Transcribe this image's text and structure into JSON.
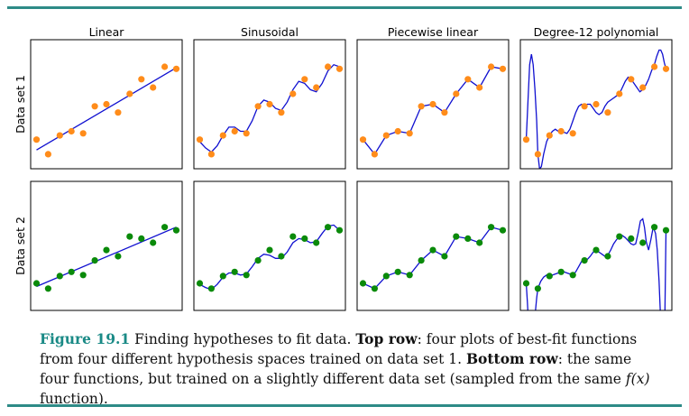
{
  "style": {
    "rule_color": "#2e8b87",
    "fit_color": "#1010d0",
    "points_row1_color": "#ff8c1a",
    "points_row2_color": "#0a8a0a",
    "caption_label_color": "#1a8a86"
  },
  "columns": [
    "Linear",
    "Sinusoidal",
    "Piecewise linear",
    "Degree-12 polynomial"
  ],
  "rows": [
    "Data set 1",
    "Data set 2"
  ],
  "chart_data": [
    {
      "type": "scatter",
      "row": "Data set 1",
      "points": {
        "x": [
          0,
          1,
          2,
          3,
          4,
          5,
          6,
          7,
          8,
          9,
          10,
          11,
          12
        ],
        "y": [
          2.0,
          1.3,
          2.2,
          2.4,
          2.3,
          3.6,
          3.7,
          3.3,
          4.2,
          4.9,
          4.5,
          5.5,
          5.4
        ]
      },
      "fits": {
        "Linear": {
          "x": [
            0,
            12
          ],
          "y": [
            1.5,
            5.45
          ]
        },
        "Sinusoidal": {
          "x": [
            0,
            0.5,
            1,
            1.5,
            2,
            2.5,
            3,
            3.5,
            4,
            4.5,
            5,
            5.5,
            6,
            6.5,
            7,
            7.5,
            8,
            8.5,
            9,
            9.5,
            10,
            10.5,
            11,
            11.5,
            12
          ],
          "y": [
            1.9,
            1.6,
            1.4,
            1.7,
            2.2,
            2.6,
            2.6,
            2.4,
            2.4,
            2.9,
            3.6,
            3.9,
            3.8,
            3.5,
            3.4,
            3.8,
            4.4,
            4.8,
            4.7,
            4.4,
            4.3,
            4.7,
            5.3,
            5.6,
            5.5
          ]
        },
        "Piecewise linear": {
          "x": [
            0,
            1,
            2,
            3,
            4,
            5,
            6,
            7,
            8,
            9,
            10,
            11,
            12
          ],
          "y": [
            2.0,
            1.3,
            2.2,
            2.4,
            2.3,
            3.6,
            3.7,
            3.3,
            4.2,
            4.9,
            4.5,
            5.5,
            5.4
          ]
        },
        "Degree-12 polynomial": {
          "x": [
            0,
            0.15,
            0.3,
            0.45,
            0.6,
            0.75,
            0.9,
            1.0,
            1.15,
            1.3,
            1.5,
            1.75,
            2.0,
            2.25,
            2.5,
            2.75,
            3.0,
            3.25,
            3.5,
            3.75,
            4.0,
            4.25,
            4.5,
            4.75,
            5.0,
            5.25,
            5.5,
            5.75,
            6.0,
            6.25,
            6.5,
            6.75,
            7.0,
            7.25,
            7.5,
            7.75,
            8.0,
            8.25,
            8.5,
            8.75,
            9.0,
            9.25,
            9.5,
            9.75,
            10.0,
            10.25,
            10.5,
            10.75,
            11.0,
            11.2,
            11.4,
            11.55,
            11.7,
            11.85,
            12.0
          ],
          "y": [
            2.0,
            3.8,
            5.6,
            6.1,
            5.6,
            4.4,
            2.9,
            1.3,
            0.6,
            0.7,
            1.3,
            1.9,
            2.2,
            2.4,
            2.5,
            2.4,
            2.4,
            2.35,
            2.3,
            2.5,
            2.9,
            3.3,
            3.6,
            3.7,
            3.6,
            3.7,
            3.7,
            3.5,
            3.3,
            3.2,
            3.3,
            3.6,
            3.8,
            3.9,
            4.0,
            4.1,
            4.2,
            4.5,
            4.8,
            5.0,
            4.9,
            4.7,
            4.5,
            4.3,
            4.4,
            4.6,
            4.9,
            5.3,
            5.6,
            6.0,
            6.3,
            6.3,
            6.1,
            5.7,
            5.4
          ]
        }
      }
    },
    {
      "type": "scatter",
      "row": "Data set 2",
      "points": {
        "x": [
          0,
          1,
          2,
          3,
          4,
          5,
          6,
          7,
          8,
          9,
          10,
          11,
          12
        ],
        "y": [
          1.9,
          1.65,
          2.25,
          2.45,
          2.3,
          3.0,
          3.5,
          3.2,
          4.15,
          4.05,
          3.85,
          4.6,
          4.45
        ]
      },
      "fits": {
        "Linear": {
          "x": [
            0,
            12
          ],
          "y": [
            1.75,
            4.6
          ]
        },
        "Sinusoidal": {
          "x": [
            0,
            0.5,
            1,
            1.5,
            2,
            2.5,
            3,
            3.5,
            4,
            4.5,
            5,
            5.5,
            6,
            6.5,
            7,
            7.5,
            8,
            8.5,
            9,
            9.5,
            10,
            10.5,
            11,
            11.5,
            12
          ],
          "y": [
            1.85,
            1.7,
            1.6,
            1.85,
            2.2,
            2.4,
            2.4,
            2.3,
            2.35,
            2.7,
            3.1,
            3.3,
            3.25,
            3.1,
            3.1,
            3.4,
            3.85,
            4.05,
            4.0,
            3.85,
            3.9,
            4.3,
            4.65,
            4.7,
            4.45
          ]
        },
        "Piecewise linear": {
          "x": [
            0,
            1,
            2,
            3,
            4,
            5,
            6,
            7,
            8,
            9,
            10,
            11,
            12
          ],
          "y": [
            1.9,
            1.65,
            2.25,
            2.45,
            2.3,
            3.0,
            3.5,
            3.2,
            4.15,
            4.05,
            3.85,
            4.6,
            4.45
          ]
        },
        "Degree-12 polynomial": {
          "x": [
            0,
            0.1,
            0.2,
            0.35,
            0.5,
            0.65,
            0.8,
            0.9,
            1.0,
            1.25,
            1.5,
            1.75,
            2.0,
            2.25,
            2.5,
            2.75,
            3.0,
            3.25,
            3.5,
            3.75,
            4.0,
            4.25,
            4.5,
            4.75,
            5.0,
            5.25,
            5.5,
            5.75,
            6.0,
            6.25,
            6.5,
            6.75,
            7.0,
            7.25,
            7.5,
            7.75,
            8.0,
            8.25,
            8.5,
            8.75,
            9.0,
            9.2,
            9.4,
            9.6,
            9.8,
            10.0,
            10.15,
            10.3,
            10.5,
            10.7,
            10.9,
            11.1,
            11.25,
            11.4,
            11.55,
            11.7,
            11.85,
            12.0
          ],
          "y": [
            1.9,
            1.0,
            0.0,
            -1.5,
            -2.0,
            -1.0,
            0.6,
            1.2,
            1.65,
            2.0,
            2.2,
            2.3,
            2.3,
            2.3,
            2.35,
            2.4,
            2.45,
            2.45,
            2.4,
            2.35,
            2.3,
            2.45,
            2.7,
            2.95,
            3.0,
            3.05,
            3.2,
            3.4,
            3.5,
            3.4,
            3.3,
            3.2,
            3.25,
            3.5,
            3.8,
            4.0,
            4.15,
            4.2,
            4.1,
            3.95,
            3.8,
            3.75,
            3.8,
            4.3,
            4.9,
            5.0,
            4.6,
            3.9,
            3.5,
            4.0,
            4.6,
            4.3,
            3.5,
            2.0,
            0.0,
            -1.8,
            -1.8,
            4.45
          ]
        }
      }
    }
  ],
  "caption": {
    "fig_label": "Figure 19.1",
    "seg1": " Finding hypotheses to fit data. ",
    "top_row": "Top row",
    "seg2": ": four plots of best-fit functions from four different hypothesis spaces trained on data set 1. ",
    "bottom_row": "Bottom row",
    "seg3": ": the same four functions, but trained on a slightly different data set (sampled from the same ",
    "math": "f(x)",
    "seg4": " function)."
  }
}
